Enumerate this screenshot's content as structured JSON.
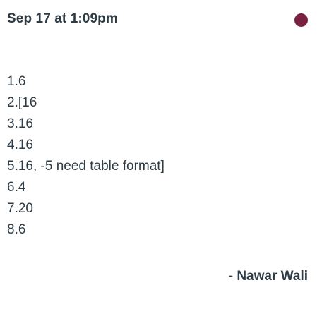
{
  "comment": {
    "timestamp": "Sep 17 at 1:09pm",
    "unread_dot_color": "#7a2040",
    "lines": [
      "1.6",
      "2.[16",
      "3.16",
      "4.16",
      "5.16, -5 need table format]",
      "6.4",
      "7.20",
      "8.6"
    ],
    "author": "- Nawar Wali"
  }
}
